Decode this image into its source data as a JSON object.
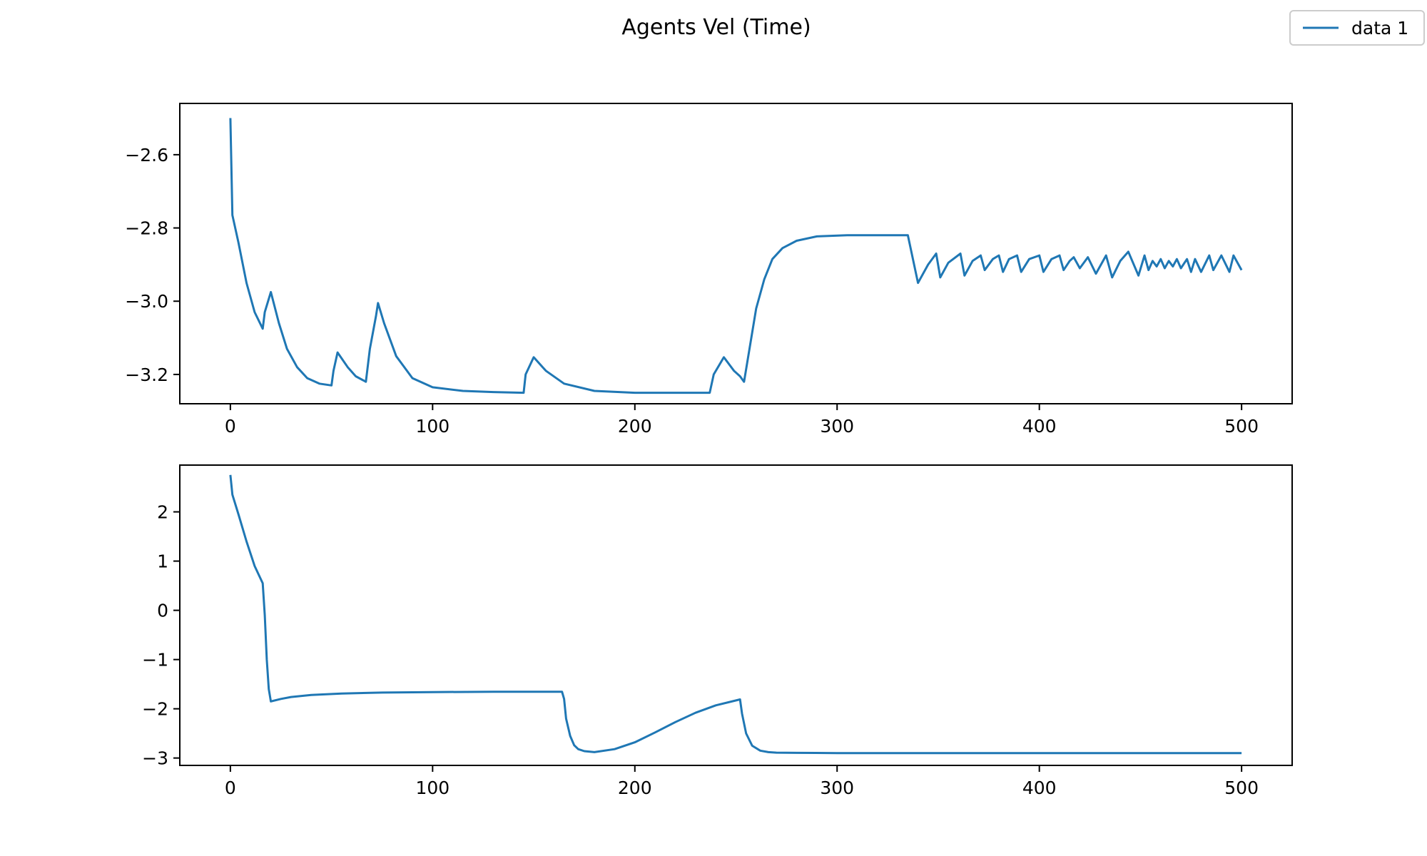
{
  "figure": {
    "title": "Agents Vel (Time)",
    "line_color": "#1f77b4",
    "legend": {
      "placement": "top-right",
      "entries": [
        "data 1"
      ]
    }
  },
  "chart_data": [
    {
      "type": "line",
      "title": "",
      "xlabel": "",
      "ylabel": "",
      "xlim": [
        -25,
        525
      ],
      "ylim": [
        -3.28,
        -2.46
      ],
      "xticks": [
        0,
        100,
        200,
        300,
        400,
        500
      ],
      "yticks": [
        -3.2,
        -3.0,
        -2.8,
        -2.6
      ],
      "ytick_labels": [
        "−3.2",
        "−3.0",
        "−2.8",
        "−2.6"
      ],
      "grid": false,
      "series": [
        {
          "name": "data 1",
          "x": [
            0,
            1,
            4,
            8,
            12,
            16,
            17,
            20,
            24,
            28,
            33,
            38,
            44,
            50,
            51,
            53,
            58,
            62,
            67,
            69,
            72,
            73,
            76,
            82,
            90,
            100,
            115,
            130,
            145,
            146,
            150,
            156,
            165,
            180,
            200,
            225,
            237,
            239,
            244,
            249,
            252,
            254,
            257,
            260,
            264,
            268,
            273,
            280,
            290,
            305,
            320,
            335,
            340,
            345,
            349,
            351,
            355,
            361,
            363,
            367,
            371,
            373,
            377,
            380,
            382,
            385,
            389,
            391,
            395,
            400,
            402,
            406,
            410,
            412,
            415,
            417,
            420,
            424,
            428,
            433,
            436,
            440,
            444,
            449,
            452,
            454,
            456,
            458,
            460,
            462,
            464,
            466,
            468,
            470,
            473,
            475,
            477,
            480,
            484,
            486,
            490,
            494,
            496,
            500
          ],
          "y": [
            -2.5,
            -2.765,
            -2.84,
            -2.95,
            -3.03,
            -3.075,
            -3.03,
            -2.975,
            -3.06,
            -3.13,
            -3.18,
            -3.21,
            -3.225,
            -3.23,
            -3.19,
            -3.14,
            -3.18,
            -3.205,
            -3.22,
            -3.13,
            -3.04,
            -3.005,
            -3.06,
            -3.15,
            -3.21,
            -3.235,
            -3.245,
            -3.248,
            -3.25,
            -3.2,
            -3.153,
            -3.19,
            -3.225,
            -3.245,
            -3.25,
            -3.25,
            -3.25,
            -3.2,
            -3.153,
            -3.19,
            -3.205,
            -3.22,
            -3.12,
            -3.02,
            -2.94,
            -2.885,
            -2.855,
            -2.835,
            -2.823,
            -2.82,
            -2.82,
            -2.82,
            -2.95,
            -2.9,
            -2.87,
            -2.935,
            -2.895,
            -2.87,
            -2.93,
            -2.89,
            -2.875,
            -2.915,
            -2.885,
            -2.875,
            -2.92,
            -2.885,
            -2.875,
            -2.92,
            -2.885,
            -2.875,
            -2.92,
            -2.885,
            -2.875,
            -2.915,
            -2.89,
            -2.88,
            -2.91,
            -2.88,
            -2.925,
            -2.875,
            -2.935,
            -2.89,
            -2.865,
            -2.93,
            -2.875,
            -2.915,
            -2.89,
            -2.905,
            -2.885,
            -2.91,
            -2.89,
            -2.905,
            -2.885,
            -2.91,
            -2.885,
            -2.92,
            -2.885,
            -2.92,
            -2.875,
            -2.915,
            -2.875,
            -2.92,
            -2.875,
            -2.915
          ]
        }
      ]
    },
    {
      "type": "line",
      "title": "",
      "xlabel": "",
      "ylabel": "",
      "xlim": [
        -25,
        525
      ],
      "ylim": [
        -3.15,
        2.95
      ],
      "xticks": [
        0,
        100,
        200,
        300,
        400,
        500
      ],
      "yticks": [
        -3,
        -2,
        -1,
        0,
        1,
        2
      ],
      "ytick_labels": [
        "−3",
        "−2",
        "−1",
        "0",
        "1",
        "2"
      ],
      "grid": false,
      "series": [
        {
          "name": "data 1",
          "x": [
            0,
            1,
            4,
            8,
            12,
            16,
            17,
            18,
            19,
            20,
            25,
            30,
            40,
            55,
            75,
            100,
            130,
            164,
            165,
            166,
            168,
            170,
            172,
            175,
            180,
            190,
            200,
            210,
            220,
            230,
            240,
            252,
            253,
            255,
            258,
            262,
            266,
            270,
            280,
            300,
            350,
            400,
            500
          ],
          "y": [
            2.75,
            2.35,
            1.95,
            1.4,
            0.9,
            0.55,
            -0.1,
            -1.0,
            -1.6,
            -1.85,
            -1.8,
            -1.76,
            -1.72,
            -1.69,
            -1.67,
            -1.66,
            -1.655,
            -1.655,
            -1.8,
            -2.2,
            -2.55,
            -2.74,
            -2.82,
            -2.86,
            -2.88,
            -2.82,
            -2.68,
            -2.48,
            -2.27,
            -2.08,
            -1.93,
            -1.81,
            -2.1,
            -2.5,
            -2.75,
            -2.85,
            -2.88,
            -2.89,
            -2.895,
            -2.9,
            -2.9,
            -2.9,
            -2.9
          ]
        }
      ]
    }
  ]
}
